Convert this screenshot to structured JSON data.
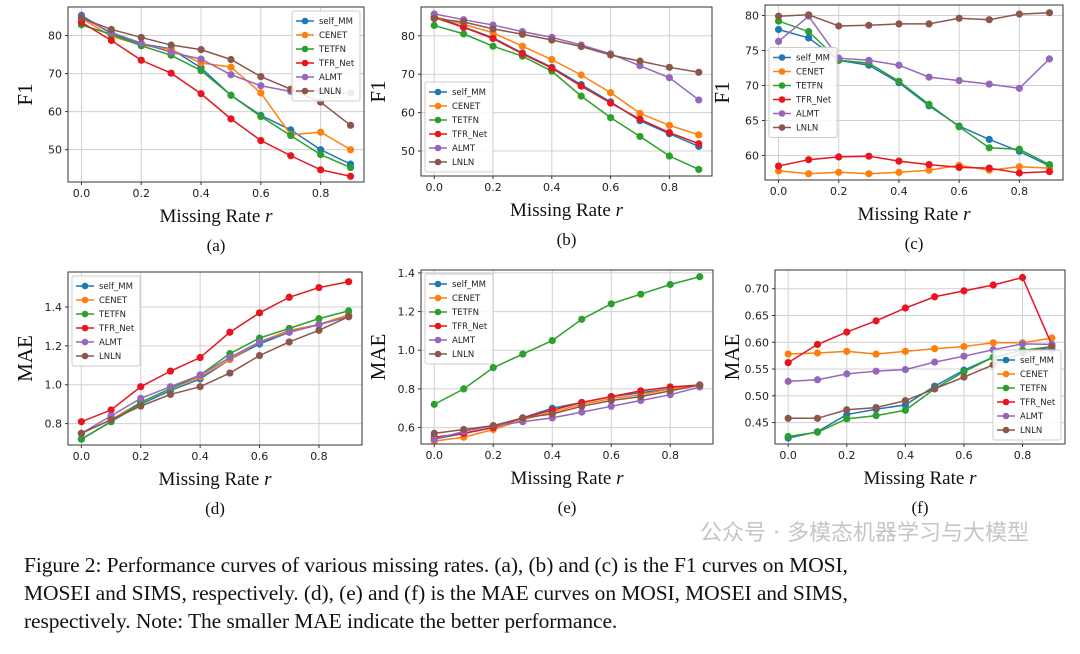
{
  "colors": {
    "self_MM": "#1f77b4",
    "CENET": "#ff7f0e",
    "TETFN": "#2ca02c",
    "TFR_Net": "#e8141f",
    "ALMT": "#9467bd",
    "LNLN": "#8c564b"
  },
  "chart_data": [
    {
      "id": "a",
      "type": "line",
      "sublabel": "(a)",
      "xlabel": "Missing Rate r",
      "ylabel": "F1",
      "legend": "top-right",
      "grid": true,
      "x": [
        0,
        0.1,
        0.2,
        0.3,
        0.4,
        0.5,
        0.6,
        0.7,
        0.8,
        0.9
      ],
      "xticks": [
        "0.0",
        "0.2",
        "0.4",
        "0.6",
        "0.8"
      ],
      "xlim": [
        -0.045,
        0.945
      ],
      "ylim": [
        41.5,
        87.5
      ],
      "yticks": [
        "50",
        "60",
        "70",
        "80"
      ],
      "series": [
        {
          "name": "self_MM",
          "values": [
            85.3,
            80.5,
            77.8,
            76.5,
            71.5,
            64.3,
            59.0,
            55.2,
            50.0,
            46.2
          ]
        },
        {
          "name": "CENET",
          "values": [
            84.5,
            79.8,
            77.5,
            76.3,
            72.8,
            71.7,
            64.9,
            53.9,
            54.6,
            50.0
          ]
        },
        {
          "name": "TETFN",
          "values": [
            82.8,
            80.3,
            77.3,
            74.8,
            70.8,
            64.3,
            58.7,
            53.7,
            48.7,
            45.3
          ]
        },
        {
          "name": "TFR_Net",
          "values": [
            83.5,
            78.7,
            73.5,
            70.1,
            64.7,
            58.1,
            52.4,
            48.4,
            44.7,
            43.0
          ]
        },
        {
          "name": "ALMT",
          "values": [
            84.8,
            80.8,
            78.0,
            75.6,
            73.8,
            69.7,
            66.8,
            65.3,
            65.4,
            64.9
          ]
        },
        {
          "name": "LNLN",
          "values": [
            84.6,
            81.6,
            79.5,
            77.5,
            76.3,
            73.7,
            69.2,
            65.9,
            62.5,
            56.4
          ]
        }
      ]
    },
    {
      "id": "b",
      "type": "line",
      "sublabel": "(b)",
      "xlabel": "Missing Rate r",
      "ylabel": "F1",
      "legend": "lower-left",
      "grid": true,
      "x": [
        0,
        0.1,
        0.2,
        0.3,
        0.4,
        0.5,
        0.6,
        0.7,
        0.8,
        0.9
      ],
      "xticks": [
        "0.0",
        "0.2",
        "0.4",
        "0.6",
        "0.8"
      ],
      "xlim": [
        -0.045,
        0.945
      ],
      "ylim": [
        43.5,
        87.5
      ],
      "yticks": [
        "50",
        "60",
        "70",
        "80"
      ],
      "series": [
        {
          "name": "self_MM",
          "values": [
            85.0,
            82.3,
            79.5,
            75.5,
            71.8,
            67.3,
            62.8,
            57.9,
            54.5,
            51.2
          ]
        },
        {
          "name": "CENET",
          "values": [
            85.0,
            83.0,
            80.8,
            77.3,
            73.8,
            69.8,
            65.2,
            59.8,
            56.7,
            54.2
          ]
        },
        {
          "name": "TETFN",
          "values": [
            82.7,
            80.5,
            77.3,
            74.7,
            70.8,
            64.3,
            58.7,
            53.8,
            48.7,
            45.2
          ]
        },
        {
          "name": "TFR_Net",
          "values": [
            84.8,
            82.2,
            79.3,
            75.3,
            71.6,
            66.9,
            62.5,
            58.3,
            54.8,
            51.9
          ]
        },
        {
          "name": "ALMT",
          "values": [
            85.7,
            84.2,
            82.8,
            81.1,
            79.6,
            77.6,
            75.3,
            72.2,
            69.1,
            63.3
          ]
        },
        {
          "name": "LNLN",
          "values": [
            84.5,
            83.6,
            81.8,
            80.4,
            78.9,
            77.2,
            75.0,
            73.4,
            71.8,
            70.5
          ]
        }
      ]
    },
    {
      "id": "c",
      "type": "line",
      "sublabel": "(c)",
      "xlabel": "Missing Rate r",
      "ylabel": "F1",
      "legend": "center-left",
      "grid": true,
      "x": [
        0,
        0.1,
        0.2,
        0.3,
        0.4,
        0.5,
        0.6,
        0.7,
        0.8,
        0.9
      ],
      "xticks": [
        "0.0",
        "0.2",
        "0.4",
        "0.6",
        "0.8"
      ],
      "xlim": [
        -0.045,
        0.945
      ],
      "ylim": [
        56.5,
        81.5
      ],
      "yticks": [
        "60",
        "65",
        "70",
        "75",
        "80"
      ],
      "series": [
        {
          "name": "self_MM",
          "values": [
            78.0,
            76.8,
            73.6,
            72.9,
            70.4,
            67.1,
            64.2,
            62.3,
            60.6,
            58.5
          ]
        },
        {
          "name": "CENET",
          "values": [
            57.8,
            57.4,
            57.6,
            57.4,
            57.6,
            57.9,
            58.6,
            57.9,
            58.4,
            58.2
          ]
        },
        {
          "name": "TETFN",
          "values": [
            79.2,
            77.7,
            73.6,
            73.2,
            70.6,
            67.3,
            64.1,
            61.1,
            60.9,
            58.7
          ]
        },
        {
          "name": "TFR_Net",
          "values": [
            58.5,
            59.4,
            59.8,
            59.9,
            59.2,
            58.7,
            58.3,
            58.2,
            57.5,
            57.7
          ]
        },
        {
          "name": "ALMT",
          "values": [
            76.3,
            79.9,
            73.9,
            73.6,
            72.9,
            71.2,
            70.7,
            70.2,
            69.6,
            73.8
          ]
        },
        {
          "name": "LNLN",
          "values": [
            79.9,
            80.1,
            78.5,
            78.6,
            78.8,
            78.8,
            79.6,
            79.4,
            80.2,
            80.4
          ]
        }
      ]
    },
    {
      "id": "d",
      "type": "line",
      "sublabel": "(d)",
      "xlabel": "Missing Rate r",
      "ylabel": "MAE",
      "legend": "top-left",
      "grid": true,
      "x": [
        0,
        0.1,
        0.2,
        0.3,
        0.4,
        0.5,
        0.6,
        0.7,
        0.8,
        0.9
      ],
      "xticks": [
        "0.0",
        "0.2",
        "0.4",
        "0.6",
        "0.8"
      ],
      "xlim": [
        -0.045,
        0.945
      ],
      "ylim": [
        0.69,
        1.58
      ],
      "yticks": [
        "0.8",
        "1.0",
        "1.2",
        "1.4"
      ],
      "series": [
        {
          "name": "self_MM",
          "values": [
            0.72,
            0.81,
            0.9,
            0.97,
            1.03,
            1.13,
            1.21,
            1.27,
            1.31,
            1.35
          ]
        },
        {
          "name": "CENET",
          "values": [
            0.75,
            0.82,
            0.91,
            0.98,
            1.04,
            1.13,
            1.22,
            1.28,
            1.31,
            1.36
          ]
        },
        {
          "name": "TETFN",
          "values": [
            0.72,
            0.81,
            0.91,
            0.98,
            1.05,
            1.16,
            1.24,
            1.29,
            1.34,
            1.38
          ]
        },
        {
          "name": "TFR_Net",
          "values": [
            0.81,
            0.87,
            0.99,
            1.07,
            1.14,
            1.27,
            1.37,
            1.45,
            1.5,
            1.53
          ]
        },
        {
          "name": "ALMT",
          "values": [
            0.75,
            0.84,
            0.93,
            0.99,
            1.05,
            1.14,
            1.22,
            1.27,
            1.31,
            1.35
          ]
        },
        {
          "name": "LNLN",
          "values": [
            0.75,
            0.82,
            0.89,
            0.95,
            0.99,
            1.06,
            1.15,
            1.22,
            1.28,
            1.35
          ]
        }
      ]
    },
    {
      "id": "e",
      "type": "line",
      "sublabel": "(e)",
      "xlabel": "Missing Rate r",
      "ylabel": "MAE",
      "legend": "top-left",
      "grid": true,
      "x": [
        0,
        0.1,
        0.2,
        0.3,
        0.4,
        0.5,
        0.6,
        0.7,
        0.8,
        0.9
      ],
      "xticks": [
        "0.0",
        "0.2",
        "0.4",
        "0.6",
        "0.8"
      ],
      "xlim": [
        -0.045,
        0.945
      ],
      "ylim": [
        0.515,
        1.415
      ],
      "yticks": [
        "0.6",
        "0.8",
        "1.0",
        "1.2",
        "1.4"
      ],
      "series": [
        {
          "name": "self_MM",
          "values": [
            0.54,
            0.57,
            0.6,
            0.65,
            0.7,
            0.73,
            0.76,
            0.78,
            0.8,
            0.82
          ]
        },
        {
          "name": "CENET",
          "values": [
            0.53,
            0.55,
            0.59,
            0.64,
            0.68,
            0.72,
            0.75,
            0.77,
            0.8,
            0.82
          ]
        },
        {
          "name": "TETFN",
          "values": [
            0.72,
            0.8,
            0.91,
            0.98,
            1.05,
            1.16,
            1.24,
            1.29,
            1.34,
            1.38
          ]
        },
        {
          "name": "TFR_Net",
          "values": [
            0.55,
            0.57,
            0.6,
            0.65,
            0.69,
            0.73,
            0.76,
            0.79,
            0.81,
            0.82
          ]
        },
        {
          "name": "ALMT",
          "values": [
            0.54,
            0.58,
            0.61,
            0.63,
            0.65,
            0.68,
            0.71,
            0.74,
            0.77,
            0.81
          ]
        },
        {
          "name": "LNLN",
          "values": [
            0.57,
            0.59,
            0.61,
            0.65,
            0.67,
            0.71,
            0.74,
            0.76,
            0.79,
            0.82
          ]
        }
      ]
    },
    {
      "id": "f",
      "type": "line",
      "sublabel": "(f)",
      "xlabel": "Missing Rate r",
      "ylabel": "MAE",
      "legend": "lower-right",
      "grid": true,
      "x": [
        0,
        0.1,
        0.2,
        0.3,
        0.4,
        0.5,
        0.6,
        0.7,
        0.8,
        0.9
      ],
      "xticks": [
        "0.0",
        "0.2",
        "0.4",
        "0.6",
        "0.8"
      ],
      "xlim": [
        -0.045,
        0.945
      ],
      "ylim": [
        0.41,
        0.735
      ],
      "yticks": [
        "0.45",
        "0.50",
        "0.55",
        "0.60",
        "0.65",
        "0.70"
      ],
      "series": [
        {
          "name": "self_MM",
          "values": [
            0.421,
            0.433,
            0.465,
            0.475,
            0.483,
            0.518,
            0.548,
            0.572,
            0.585,
            0.587
          ]
        },
        {
          "name": "CENET",
          "values": [
            0.578,
            0.58,
            0.583,
            0.578,
            0.583,
            0.588,
            0.592,
            0.599,
            0.599,
            0.608
          ]
        },
        {
          "name": "TETFN",
          "values": [
            0.424,
            0.432,
            0.457,
            0.463,
            0.473,
            0.513,
            0.545,
            0.572,
            0.585,
            0.592
          ]
        },
        {
          "name": "TFR_Net",
          "values": [
            0.562,
            0.596,
            0.619,
            0.64,
            0.664,
            0.685,
            0.696,
            0.707,
            0.721,
            0.595
          ]
        },
        {
          "name": "ALMT",
          "values": [
            0.527,
            0.53,
            0.541,
            0.546,
            0.549,
            0.563,
            0.574,
            0.586,
            0.597,
            0.596
          ]
        },
        {
          "name": "LNLN",
          "values": [
            0.458,
            0.458,
            0.474,
            0.478,
            0.491,
            0.513,
            0.535,
            0.558,
            0.58,
            0.592
          ]
        }
      ]
    }
  ],
  "caption": {
    "line1": "Figure 2: Performance curves of various missing rates. (a), (b) and (c) is the F1 curves on MOSI,",
    "line2": "MOSEI and SIMS, respectively. (d), (e) and (f) is the MAE curves on MOSI, MOSEI and SIMS,",
    "line3": "respectively. Note: The smaller MAE indicate the better performance."
  },
  "watermark": "公众号 · 多模态机器学习与大模型"
}
